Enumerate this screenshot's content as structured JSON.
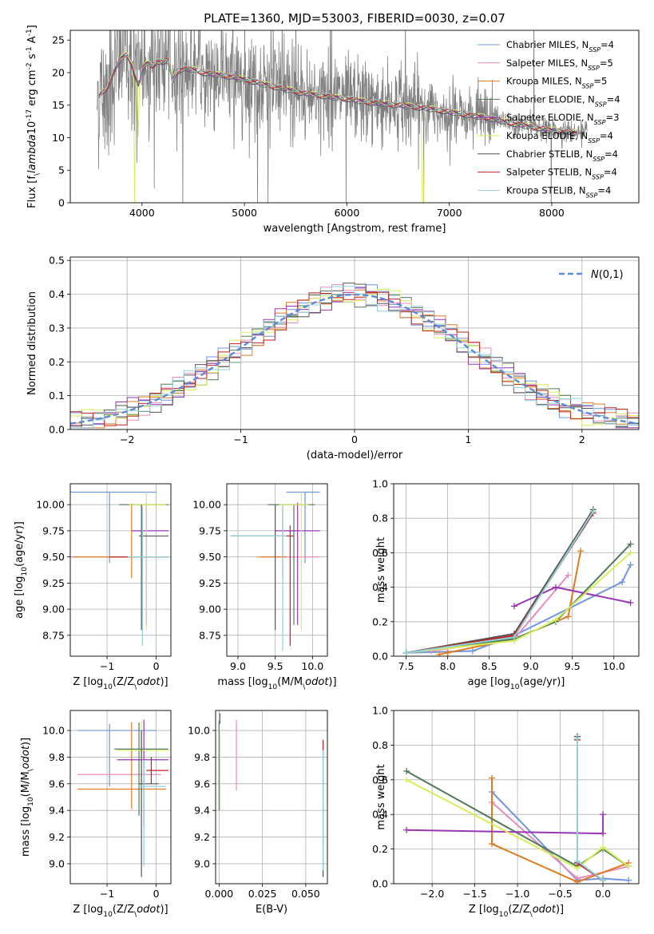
{
  "figure_title": "PLATE=1360, MJD=53003, FIBERID=0030, z=0.07",
  "series_names": [
    "Chabrier MILES, N$_{SSP}$=4",
    "Salpeter MILES, N$_{SSP}$=5",
    "Kroupa MILES, N$_{SSP}$=5",
    "Chabrier ELODIE, N$_{SSP}$=4",
    "Salpeter ELODIE, N$_{SSP}$=3",
    "Kroupa ELODIE, N$_{SSP}$=4",
    "Chabrier STELIB, N$_{SSP}$=4",
    "Salpeter STELIB, N$_{SSP}$=4",
    "Kroupa STELIB, N$_{SSP}$=4"
  ],
  "series_colors": [
    "#6f94e0",
    "#e88bbd",
    "#e07a20",
    "#4f7a5a",
    "#9a35b5",
    "#d5ef5a",
    "#555555",
    "#c0201f",
    "#8fd0d8"
  ],
  "chart_data": [
    {
      "id": "spectrum",
      "type": "line",
      "title": "PLATE=1360, MJD=53003, FIBERID=0030, z=0.07",
      "xlabel": "wavelength [Angstrom, rest frame]",
      "ylabel": "Flux [f$_\\lambda$10$^{-17}$ erg cm$^{-2}$ s$^{-1}$ A$^{-1}$]",
      "xlim": [
        3300,
        8850
      ],
      "ylim": [
        0,
        26.5
      ],
      "xticks": [
        4000,
        5000,
        6000,
        7000,
        8000
      ],
      "yticks": [
        0,
        5,
        10,
        15,
        20,
        25
      ],
      "legend": "top-right",
      "data_color": "#808080",
      "model_continuum": {
        "x": [
          3580,
          3650,
          3700,
          3750,
          3800,
          3850,
          3900,
          3930,
          3970,
          4000,
          4050,
          4100,
          4150,
          4200,
          4250,
          4300,
          4350,
          4400,
          4500,
          4600,
          4700,
          4800,
          4900,
          5000,
          5200,
          5400,
          5600,
          5800,
          6000,
          6200,
          6400,
          6600,
          6800,
          7000,
          7200,
          7400,
          7600,
          7800,
          8000,
          8200
        ],
        "y": [
          16.5,
          17.5,
          19,
          21,
          22.3,
          22.8,
          21.5,
          19.5,
          18,
          20.5,
          21.6,
          21.0,
          21.8,
          21.5,
          22.0,
          19.0,
          20.3,
          20.6,
          20.5,
          20.0,
          19.8,
          19.6,
          19.3,
          19.0,
          18.2,
          17.5,
          16.8,
          16.4,
          16.0,
          15.5,
          15.2,
          14.9,
          14.5,
          14.0,
          13.5,
          13.0,
          12.3,
          11.7,
          11.2,
          10.8
        ]
      }
    },
    {
      "id": "residuals",
      "type": "line",
      "xlabel": "(data-model)/error",
      "ylabel": "Normed distribution",
      "xlim": [
        -2.5,
        2.5
      ],
      "ylim": [
        0,
        0.51
      ],
      "xticks": [
        -2,
        -1,
        0,
        1,
        2
      ],
      "yticks": [
        0.0,
        0.1,
        0.2,
        0.3,
        0.4,
        0.5
      ],
      "legend": "top-right",
      "legend_label": "$\\mathcal{N}(0,1)$",
      "gaussian": {
        "mean": 0,
        "sigma": 1
      },
      "bin_width": 0.1
    },
    {
      "id": "age_vs_Z",
      "type": "scatter",
      "xlabel": "Z [log$_{10}$(Z/Z$_\\odot$)]",
      "ylabel": "age  [log$_{10}$(age/yr)]",
      "xlim": [
        -1.75,
        0.3
      ],
      "ylim": [
        8.55,
        10.2
      ],
      "xticks": [
        -1,
        0
      ],
      "yticks": [
        8.75,
        9.0,
        9.25,
        9.5,
        9.75,
        10.0
      ],
      "points": [
        {
          "x": -0.95,
          "y": 10.12,
          "xerr": [
            0.8,
            0.95
          ],
          "yerr": [
            0.68,
            0.0
          ],
          "c": 0
        },
        {
          "x": -0.8,
          "y": 9.5,
          "xerr": [
            0.95,
            1.0
          ],
          "yerr": [
            0.0,
            0.0
          ],
          "c": 1
        },
        {
          "x": -0.5,
          "y": 9.5,
          "xerr": [
            1.2,
            0.6
          ],
          "yerr": [
            0.2,
            0.51
          ],
          "c": 2
        },
        {
          "x": -0.3,
          "y": 10.0,
          "xerr": [
            0.45,
            0.55
          ],
          "yerr": [
            1.18,
            0.0
          ],
          "c": 3
        },
        {
          "x": -0.2,
          "y": 9.75,
          "xerr": [
            0.3,
            0.45
          ],
          "yerr": [
            0.9,
            0.27
          ],
          "c": 4
        },
        {
          "x": -0.2,
          "y": 10.0,
          "xerr": [
            0.35,
            0.4
          ],
          "yerr": [
            1.2,
            0.12
          ],
          "c": 5
        },
        {
          "x": -0.3,
          "y": 9.7,
          "xerr": [
            0.05,
            0.55
          ],
          "yerr": [
            0.9,
            0.3
          ],
          "c": 6
        },
        {
          "x": -0.35,
          "y": 9.5,
          "xerr": [
            0.6,
            0.6
          ],
          "yerr": [
            0.0,
            0.0
          ],
          "c": 7
        },
        {
          "x": -0.28,
          "y": 9.5,
          "xerr": [
            0.3,
            0.55
          ],
          "yerr": [
            0.85,
            0.48
          ],
          "c": 8
        }
      ]
    },
    {
      "id": "age_vs_mass",
      "type": "scatter",
      "xlabel": "mass [log$_{10}$(M/M$_\\odot$)]",
      "ylabel": "",
      "xlim": [
        8.85,
        10.2
      ],
      "ylim": [
        8.55,
        10.2
      ],
      "xticks": [
        9.0,
        9.5,
        10.0
      ],
      "yticks": [
        8.75,
        9.0,
        9.25,
        9.5,
        9.75,
        10.0
      ],
      "points": [
        {
          "x": 9.9,
          "y": 10.12,
          "xerr": [
            0.25,
            0.2
          ],
          "yerr": [
            0.68,
            0.0
          ],
          "c": 0
        },
        {
          "x": 9.6,
          "y": 9.5,
          "xerr": [
            0.35,
            0.5
          ],
          "yerr": [
            0.0,
            0.0
          ],
          "c": 1
        },
        {
          "x": 9.6,
          "y": 9.5,
          "xerr": [
            0.3,
            0.05
          ],
          "yerr": [
            0.2,
            0.5
          ],
          "c": 2
        },
        {
          "x": 9.75,
          "y": 10.0,
          "xerr": [
            0.35,
            0.28
          ],
          "yerr": [
            1.15,
            0.0
          ],
          "c": 3
        },
        {
          "x": 9.8,
          "y": 9.75,
          "xerr": [
            0.3,
            0.3
          ],
          "yerr": [
            0.9,
            0.27
          ],
          "c": 4
        },
        {
          "x": 9.85,
          "y": 10.0,
          "xerr": [
            0.3,
            0.1
          ],
          "yerr": [
            1.2,
            0.12
          ],
          "c": 5
        },
        {
          "x": 9.5,
          "y": 9.7,
          "xerr": [
            0.6,
            0.05
          ],
          "yerr": [
            0.9,
            0.3
          ],
          "c": 6
        },
        {
          "x": 9.7,
          "y": 9.7,
          "xerr": [
            0.8,
            0.05
          ],
          "yerr": [
            1.05,
            0.1
          ],
          "c": 7
        },
        {
          "x": 9.6,
          "y": 9.7,
          "xerr": [
            0.7,
            0.05
          ],
          "yerr": [
            1.1,
            0.3
          ],
          "c": 8
        }
      ]
    },
    {
      "id": "mass_weight_vs_age",
      "type": "line",
      "xlabel": "age  [log$_{10}$(age/yr)]",
      "ylabel": "mass weight",
      "xlim": [
        7.35,
        10.3
      ],
      "ylim": [
        0,
        1.0
      ],
      "xticks": [
        7.5,
        8.0,
        8.5,
        9.0,
        9.5,
        10.0
      ],
      "yticks": [
        0.0,
        0.2,
        0.4,
        0.6,
        0.8,
        1.0
      ],
      "series": [
        {
          "c": 0,
          "x": [
            7.5,
            8.3,
            8.8,
            10.1,
            10.2
          ],
          "y": [
            0.02,
            0.03,
            0.12,
            0.43,
            0.53
          ]
        },
        {
          "c": 1,
          "x": [
            7.8,
            8.8,
            9.45
          ],
          "y": [
            0.03,
            0.1,
            0.47
          ]
        },
        {
          "c": 2,
          "x": [
            7.9,
            8.0,
            8.8,
            9.45,
            9.6
          ],
          "y": [
            0.01,
            0.02,
            0.1,
            0.23,
            0.61
          ]
        },
        {
          "c": 3,
          "x": [
            7.5,
            8.8,
            9.3,
            10.2
          ],
          "y": [
            0.02,
            0.1,
            0.2,
            0.65
          ]
        },
        {
          "c": 4,
          "x": [
            8.8,
            9.3,
            10.2
          ],
          "y": [
            0.29,
            0.4,
            0.31
          ]
        },
        {
          "c": 5,
          "x": [
            7.5,
            8.8,
            9.3,
            10.2
          ],
          "y": [
            0.02,
            0.09,
            0.21,
            0.6
          ]
        },
        {
          "c": 6,
          "x": [
            7.5,
            8.8,
            9.75
          ],
          "y": [
            0.02,
            0.13,
            0.85
          ]
        },
        {
          "c": 7,
          "x": [
            7.5,
            8.8,
            9.75
          ],
          "y": [
            0.02,
            0.12,
            0.83
          ]
        },
        {
          "c": 8,
          "x": [
            7.5,
            8.8,
            9.75
          ],
          "y": [
            0.02,
            0.11,
            0.84
          ]
        }
      ]
    },
    {
      "id": "mass_vs_Z",
      "type": "scatter",
      "xlabel": "Z [log$_{10}$(Z/Z$_\\odot$)]",
      "ylabel": "mass [log$_{10}$(M/M$_\\odot$)]",
      "xlim": [
        -1.75,
        0.3
      ],
      "ylim": [
        8.85,
        10.15
      ],
      "xticks": [
        -1,
        0
      ],
      "yticks": [
        9.0,
        9.2,
        9.4,
        9.6,
        9.8,
        10.0
      ],
      "points": [
        {
          "x": -0.95,
          "y": 10.0,
          "xerr": [
            0.65,
            0.95
          ],
          "yerr": [
            0.42,
            0.05
          ],
          "c": 0
        },
        {
          "x": -0.9,
          "y": 9.67,
          "xerr": [
            0.7,
            1.0
          ],
          "yerr": [
            0.0,
            0.0
          ],
          "c": 1
        },
        {
          "x": -0.5,
          "y": 9.56,
          "xerr": [
            1.1,
            0.7
          ],
          "yerr": [
            0.15,
            0.5
          ],
          "c": 2
        },
        {
          "x": -0.35,
          "y": 9.86,
          "xerr": [
            0.5,
            0.6
          ],
          "yerr": [
            0.5,
            0.2
          ],
          "c": 3
        },
        {
          "x": -0.25,
          "y": 9.78,
          "xerr": [
            0.55,
            0.5
          ],
          "yerr": [
            0.5,
            0.3
          ],
          "c": 4
        },
        {
          "x": -0.3,
          "y": 9.85,
          "xerr": [
            0.5,
            0.55
          ],
          "yerr": [
            0.45,
            0.22
          ],
          "c": 5
        },
        {
          "x": -0.3,
          "y": 9.6,
          "xerr": [
            0.05,
            0.35
          ],
          "yerr": [
            0.7,
            0.4
          ],
          "c": 6
        },
        {
          "x": -0.1,
          "y": 9.7,
          "xerr": [
            0.1,
            0.35
          ],
          "yerr": [
            0.1,
            0.1
          ],
          "c": 7
        },
        {
          "x": -0.25,
          "y": 9.58,
          "xerr": [
            0.1,
            0.45
          ],
          "yerr": [
            0.6,
            0.2
          ],
          "c": 8
        }
      ]
    },
    {
      "id": "mass_vs_EBV",
      "type": "scatter",
      "xlabel": "E(B-V)",
      "ylabel": "",
      "xlim": [
        -0.002,
        0.0625
      ],
      "ylim": [
        8.85,
        10.15
      ],
      "xticks": [
        0.0,
        0.025,
        0.05
      ],
      "yticks": [
        9.0,
        9.2,
        9.4,
        9.6,
        9.8,
        10.0
      ],
      "points": [
        {
          "x": 0.0,
          "y": 9.85,
          "yerr": [
            0.45,
            0.22
          ],
          "c": 3
        },
        {
          "x": 0.0005,
          "y": 10.05,
          "yerr": [
            0.0,
            0.08
          ],
          "c": 4
        },
        {
          "x": 0.0005,
          "y": 9.75,
          "yerr": [
            0.35,
            0.25
          ],
          "c": 5
        },
        {
          "x": 0.01,
          "y": 9.8,
          "yerr": [
            0.25,
            0.28
          ],
          "c": 1
        },
        {
          "x": 0.06,
          "y": 9.85,
          "yerr": [
            0.0,
            0.08
          ],
          "c": 7
        },
        {
          "x": 0.06,
          "y": 9.5,
          "yerr": [
            0.6,
            0.35
          ],
          "c": 6
        },
        {
          "x": 0.06,
          "y": 9.45,
          "yerr": [
            0.5,
            0.4
          ],
          "c": 8
        }
      ]
    },
    {
      "id": "mass_weight_vs_Z",
      "type": "line",
      "xlabel": "Z [log$_{10}$(Z/Z$_\\odot$)]",
      "ylabel": "mass weight",
      "xlim": [
        -2.45,
        0.42
      ],
      "ylim": [
        0,
        1.0
      ],
      "xticks": [
        -2.0,
        -1.5,
        -1.0,
        -0.5,
        0.0
      ],
      "yticks": [
        0.0,
        0.2,
        0.4,
        0.6,
        0.8,
        1.0
      ],
      "series": [
        {
          "c": 0,
          "x": [
            -1.3,
            -0.3,
            0.0,
            0.3
          ],
          "y": [
            0.53,
            0.02,
            0.03,
            0.02
          ]
        },
        {
          "c": 1,
          "x": [
            -1.3,
            -0.3,
            0.3
          ],
          "y": [
            0.47,
            0.03,
            0.1
          ]
        },
        {
          "c": 2,
          "x": [
            -1.3,
            -1.3,
            -0.3,
            0.3
          ],
          "y": [
            0.61,
            0.23,
            0.01,
            0.12
          ]
        },
        {
          "c": 3,
          "x": [
            -2.3,
            -0.3,
            0.0,
            0.3
          ],
          "y": [
            0.65,
            0.1,
            0.2,
            0.1
          ]
        },
        {
          "c": 4,
          "x": [
            -2.3,
            0.0,
            0.0
          ],
          "y": [
            0.31,
            0.29,
            0.4
          ]
        },
        {
          "c": 5,
          "x": [
            -2.3,
            -0.3,
            0.0,
            0.3
          ],
          "y": [
            0.6,
            0.09,
            0.21,
            0.1
          ]
        },
        {
          "c": 6,
          "x": [
            -0.3,
            -0.3,
            0.0
          ],
          "y": [
            0.85,
            0.12,
            0.02
          ]
        },
        {
          "c": 7,
          "x": [
            -0.3,
            -0.3,
            0.0
          ],
          "y": [
            0.83,
            0.12,
            0.02
          ]
        },
        {
          "c": 8,
          "x": [
            -0.3,
            -0.3,
            0.0
          ],
          "y": [
            0.84,
            0.13,
            0.02
          ]
        }
      ]
    }
  ]
}
